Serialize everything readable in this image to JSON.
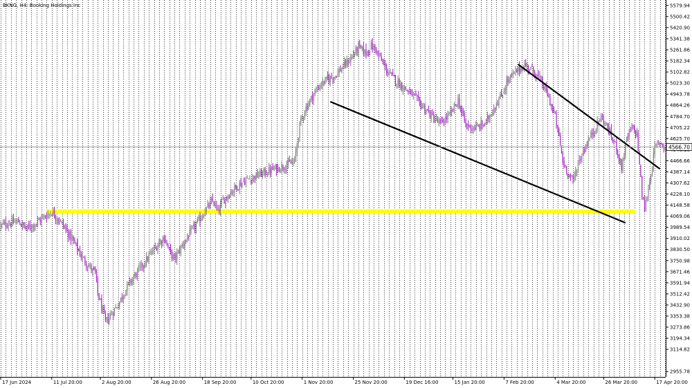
{
  "chart_data": {
    "type": "candlestick",
    "title": "BKNG, H4:  Booking Holdings Inc",
    "symbol": "BKNG",
    "timeframe": "H4",
    "company": "Booking Holdings Inc",
    "ylim": [
      2917.0,
      5619.0
    ],
    "y_ticks": [
      "5579.94",
      "5500.42",
      "5420.90",
      "5341.38",
      "5261.86",
      "5182.34",
      "5102.82",
      "5023.30",
      "4943.78",
      "4864.26",
      "4784.70",
      "4705.22",
      "4625.70",
      "4546.18",
      "4466.66",
      "4387.14",
      "4307.62",
      "4228.10",
      "4148.58",
      "4069.06",
      "3989.54",
      "3910.02",
      "3830.50",
      "3750.98",
      "3671.46",
      "3591.94",
      "3512.42",
      "3432.90",
      "3353.38",
      "3273.86",
      "3194.34",
      "3114.82",
      "2955.78"
    ],
    "x_ticks": [
      {
        "label": "17 Jun 2024",
        "i": 0
      },
      {
        "label": "11 Jul 20:00",
        "i": 40
      },
      {
        "label": "2 Aug 20:00",
        "i": 78
      },
      {
        "label": "26 Aug 20:00",
        "i": 118
      },
      {
        "label": "18 Sep 20:00",
        "i": 158
      },
      {
        "label": "10 Oct 20:00",
        "i": 196
      },
      {
        "label": "1 Nov 20:00",
        "i": 236
      },
      {
        "label": "25 Nov 20:00",
        "i": 276
      },
      {
        "label": "19 Dec 16:00",
        "i": 316
      },
      {
        "label": "15 Jan 20:00",
        "i": 354
      },
      {
        "label": "7 Feb 20:00",
        "i": 394
      },
      {
        "label": "4 Mar 20:00",
        "i": 434
      },
      {
        "label": "26 Mar 20:00",
        "i": 472
      },
      {
        "label": "17 Apr 20:00",
        "i": 512
      }
    ],
    "bar_count": 520,
    "anchors": [
      [
        0,
        4000
      ],
      [
        6,
        4020
      ],
      [
        14,
        4030
      ],
      [
        20,
        3980
      ],
      [
        26,
        4010
      ],
      [
        32,
        4050
      ],
      [
        40,
        4100
      ],
      [
        46,
        4040
      ],
      [
        52,
        3960
      ],
      [
        58,
        3870
      ],
      [
        64,
        3770
      ],
      [
        70,
        3700
      ],
      [
        74,
        3660
      ],
      [
        76,
        3520
      ],
      [
        80,
        3380
      ],
      [
        82,
        3310
      ],
      [
        86,
        3360
      ],
      [
        92,
        3440
      ],
      [
        100,
        3580
      ],
      [
        108,
        3680
      ],
      [
        116,
        3780
      ],
      [
        124,
        3880
      ],
      [
        128,
        3920
      ],
      [
        132,
        3820
      ],
      [
        136,
        3760
      ],
      [
        142,
        3860
      ],
      [
        150,
        3970
      ],
      [
        156,
        4050
      ],
      [
        160,
        4110
      ],
      [
        166,
        4180
      ],
      [
        170,
        4100
      ],
      [
        174,
        4180
      ],
      [
        182,
        4260
      ],
      [
        190,
        4320
      ],
      [
        198,
        4350
      ],
      [
        206,
        4380
      ],
      [
        212,
        4400
      ],
      [
        222,
        4430
      ],
      [
        230,
        4460
      ],
      [
        234,
        4720
      ],
      [
        238,
        4830
      ],
      [
        244,
        4930
      ],
      [
        250,
        5010
      ],
      [
        256,
        5050
      ],
      [
        262,
        5080
      ],
      [
        268,
        5140
      ],
      [
        274,
        5200
      ],
      [
        280,
        5280
      ],
      [
        286,
        5240
      ],
      [
        290,
        5290
      ],
      [
        294,
        5260
      ],
      [
        298,
        5180
      ],
      [
        304,
        5090
      ],
      [
        312,
        5020
      ],
      [
        322,
        4940
      ],
      [
        330,
        4860
      ],
      [
        338,
        4780
      ],
      [
        344,
        4730
      ],
      [
        352,
        4800
      ],
      [
        358,
        4900
      ],
      [
        364,
        4720
      ],
      [
        372,
        4700
      ],
      [
        380,
        4740
      ],
      [
        386,
        4850
      ],
      [
        392,
        4930
      ],
      [
        396,
        5030
      ],
      [
        404,
        5110
      ],
      [
        410,
        5150
      ],
      [
        416,
        5120
      ],
      [
        422,
        5050
      ],
      [
        428,
        4940
      ],
      [
        434,
        4780
      ],
      [
        438,
        4580
      ],
      [
        440,
        4460
      ],
      [
        444,
        4380
      ],
      [
        448,
        4320
      ],
      [
        452,
        4450
      ],
      [
        458,
        4580
      ],
      [
        464,
        4680
      ],
      [
        470,
        4780
      ],
      [
        474,
        4720
      ],
      [
        478,
        4640
      ],
      [
        482,
        4560
      ],
      [
        486,
        4420
      ],
      [
        490,
        4620
      ],
      [
        494,
        4700
      ],
      [
        498,
        4660
      ],
      [
        502,
        4220
      ],
      [
        504,
        4120
      ],
      [
        508,
        4320
      ],
      [
        512,
        4560
      ],
      [
        516,
        4600
      ],
      [
        520,
        4566
      ]
    ],
    "current_price": "4566.70",
    "current_price_value": 4566.7,
    "price_line_level": 4566.7,
    "support_zone": {
      "low": 4090,
      "high": 4118,
      "start_i": 36
    },
    "trendlines": [
      {
        "from": {
          "i": 258,
          "price": 4890
        },
        "to": {
          "i": 489,
          "price": 4022
        }
      },
      {
        "from": {
          "i": 405,
          "price": 5158
        },
        "to": {
          "i": 516,
          "price": 4408
        }
      }
    ],
    "colors": {
      "bull": "#7a7a7a",
      "bear": "#a020c0",
      "grid": "#333333",
      "axis": "#000000",
      "zone": "#ffff00",
      "trend": "#000000",
      "price_line": "#a0a0a0",
      "price_label_bg": "#ffffff",
      "background": "#ffffff",
      "text": "#000000"
    },
    "grid": true
  }
}
